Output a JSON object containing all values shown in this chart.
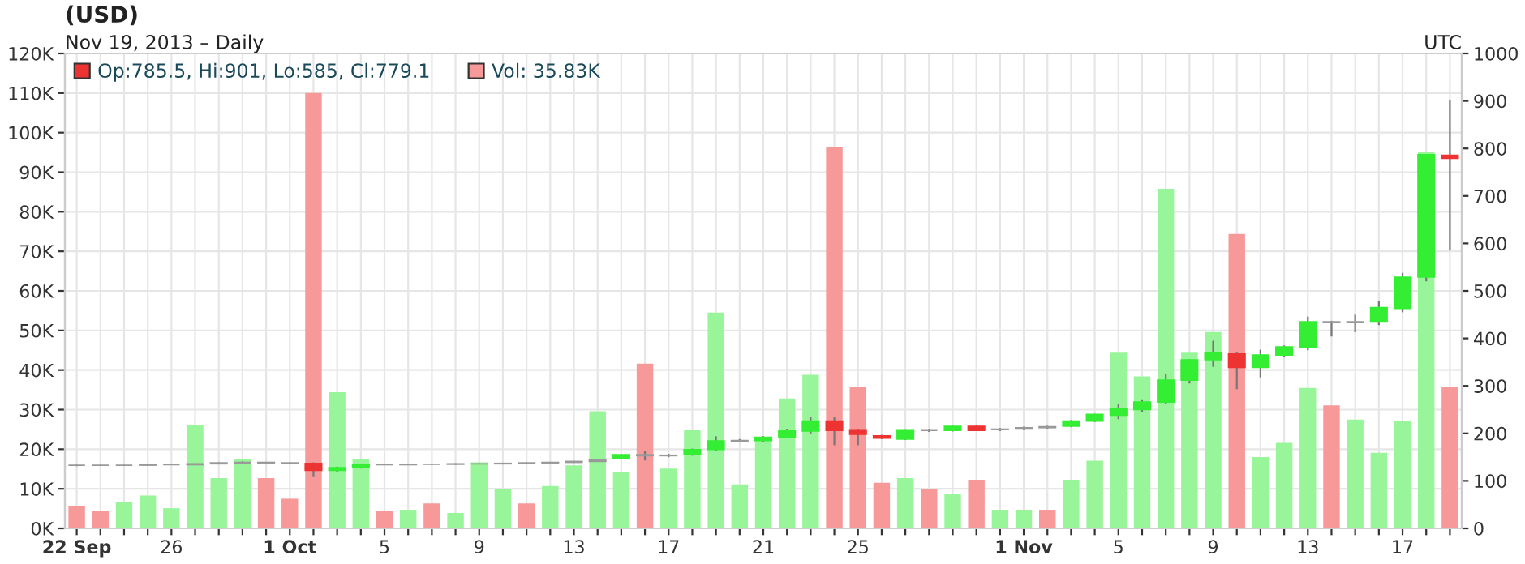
{
  "chart_data": {
    "type": "candlestick",
    "title": "(USD)",
    "subtitle": "Nov 19, 2013 – Daily",
    "annotations": [
      "UTC"
    ],
    "x": [
      "2013-09-22",
      "2013-09-23",
      "2013-09-24",
      "2013-09-25",
      "2013-09-26",
      "2013-09-27",
      "2013-09-28",
      "2013-09-29",
      "2013-09-30",
      "2013-10-01",
      "2013-10-02",
      "2013-10-03",
      "2013-10-04",
      "2013-10-05",
      "2013-10-06",
      "2013-10-07",
      "2013-10-08",
      "2013-10-09",
      "2013-10-10",
      "2013-10-11",
      "2013-10-12",
      "2013-10-13",
      "2013-10-14",
      "2013-10-15",
      "2013-10-16",
      "2013-10-17",
      "2013-10-18",
      "2013-10-19",
      "2013-10-20",
      "2013-10-21",
      "2013-10-22",
      "2013-10-23",
      "2013-10-24",
      "2013-10-25",
      "2013-10-26",
      "2013-10-27",
      "2013-10-28",
      "2013-10-29",
      "2013-10-30",
      "2013-10-31",
      "2013-11-01",
      "2013-11-02",
      "2013-11-03",
      "2013-11-04",
      "2013-11-05",
      "2013-11-06",
      "2013-11-07",
      "2013-11-08",
      "2013-11-09",
      "2013-11-10",
      "2013-11-11",
      "2013-11-12",
      "2013-11-13",
      "2013-11-14",
      "2013-11-15",
      "2013-11-16",
      "2013-11-17",
      "2013-11-18",
      "2013-11-19"
    ],
    "series": [
      {
        "type": "bar",
        "name": "Vol: 35.83K",
        "color": "#f79999",
        "values": [
          5.6,
          4.3,
          6.7,
          8.3,
          5.1,
          26.1,
          12.7,
          17.4,
          12.7,
          7.5,
          110,
          34.4,
          17.4,
          4.3,
          4.7,
          6.3,
          3.9,
          16.7,
          10.0,
          6.3,
          10.7,
          15.9,
          29.6,
          14.3,
          41.6,
          15.1,
          24.8,
          54.5,
          11.1,
          22.8,
          32.8,
          38.8,
          96.3,
          35.7,
          11.5,
          12.7,
          10.0,
          8.7,
          12.3,
          4.7,
          4.7,
          4.7,
          12.3,
          17.1,
          44.4,
          38.4,
          85.8,
          44.4,
          49.6,
          74.4,
          18.0,
          21.6,
          35.5,
          31.1,
          27.5,
          19.1,
          27.1,
          95,
          35.8
        ],
        "colors": [
          "#f79999",
          "#f79999",
          "#99f599",
          "#99f599",
          "#99f599",
          "#99f599",
          "#99f599",
          "#99f599",
          "#f79999",
          "#f79999",
          "#f79999",
          "#99f599",
          "#99f599",
          "#f79999",
          "#99f599",
          "#f79999",
          "#99f599",
          "#99f599",
          "#99f599",
          "#f79999",
          "#99f599",
          "#99f599",
          "#99f599",
          "#99f599",
          "#f79999",
          "#99f599",
          "#99f599",
          "#99f599",
          "#99f599",
          "#99f599",
          "#99f599",
          "#99f599",
          "#f79999",
          "#f79999",
          "#f79999",
          "#99f599",
          "#f79999",
          "#99f599",
          "#f79999",
          "#99f599",
          "#99f599",
          "#f79999",
          "#99f599",
          "#99f599",
          "#99f599",
          "#99f599",
          "#99f599",
          "#99f599",
          "#99f599",
          "#f79999",
          "#99f599",
          "#99f599",
          "#99f599",
          "#f79999",
          "#99f599",
          "#99f599",
          "#99f599",
          "#99f599",
          "#f79999"
        ]
      },
      {
        "axis": "y2",
        "name": "Op:785.5, Hi:901, Lo:585, Cl:779.1",
        "color": "#ee3333",
        "ohlc": [
          [
            133,
            134,
            131,
            133
          ],
          [
            133,
            134,
            132,
            133
          ],
          [
            133,
            134,
            132,
            133
          ],
          [
            133,
            134,
            132,
            134
          ],
          [
            134,
            135,
            133,
            134
          ],
          [
            134,
            137,
            133,
            136
          ],
          [
            136,
            139,
            135,
            138
          ],
          [
            138,
            141,
            137,
            139
          ],
          [
            139,
            140,
            137,
            138
          ],
          [
            138,
            139,
            136,
            137
          ],
          [
            137,
            139,
            108,
            122
          ],
          [
            122,
            130,
            118,
            128
          ],
          [
            128,
            136,
            126,
            135
          ],
          [
            135,
            136,
            133,
            134
          ],
          [
            134,
            135,
            133,
            135
          ],
          [
            135,
            136,
            134,
            135
          ],
          [
            135,
            137,
            134,
            136
          ],
          [
            136,
            137,
            135,
            136
          ],
          [
            136,
            138,
            135,
            137
          ],
          [
            137,
            139,
            136,
            138
          ],
          [
            138,
            140,
            137,
            139
          ],
          [
            139,
            142,
            138,
            141
          ],
          [
            141,
            146,
            140,
            145
          ],
          [
            147,
            156,
            146,
            155
          ],
          [
            155,
            163,
            143,
            153
          ],
          [
            153,
            157,
            150,
            154
          ],
          [
            155,
            168,
            153,
            166
          ],
          [
            166,
            194,
            163,
            184
          ],
          [
            184,
            188,
            181,
            185
          ],
          [
            185,
            194,
            182,
            192
          ],
          [
            192,
            208,
            190,
            205
          ],
          [
            205,
            234,
            200,
            226
          ],
          [
            226,
            234,
            175,
            206
          ],
          [
            206,
            208,
            175,
            198
          ],
          [
            195,
            197,
            188,
            190
          ],
          [
            188,
            207,
            186,
            206
          ],
          [
            206,
            208,
            203,
            206
          ],
          [
            206,
            216,
            204,
            215
          ],
          [
            215,
            217,
            205,
            206
          ],
          [
            208,
            211,
            205,
            209
          ],
          [
            209,
            214,
            207,
            212
          ],
          [
            212,
            216,
            210,
            214
          ],
          [
            215,
            228,
            213,
            226
          ],
          [
            226,
            241,
            224,
            240
          ],
          [
            238,
            262,
            230,
            252
          ],
          [
            250,
            270,
            245,
            266
          ],
          [
            266,
            326,
            262,
            312
          ],
          [
            312,
            356,
            305,
            355
          ],
          [
            355,
            395,
            340,
            370
          ],
          [
            367,
            372,
            293,
            339
          ],
          [
            339,
            376,
            318,
            365
          ],
          [
            365,
            385,
            360,
            382
          ],
          [
            382,
            446,
            375,
            435
          ],
          [
            435,
            437,
            404,
            434
          ],
          [
            434,
            450,
            413,
            435
          ],
          [
            436,
            478,
            428,
            465
          ],
          [
            463,
            538,
            455,
            529
          ],
          [
            529,
            788,
            520,
            787
          ],
          [
            785.5,
            901,
            585,
            779.1
          ]
        ],
        "colors": [
          "#999999",
          "#999999",
          "#999999",
          "#999999",
          "#999999",
          "#999999",
          "#999999",
          "#999999",
          "#999999",
          "#999999",
          "#ee3333",
          "#33ee33",
          "#33ee33",
          "#999999",
          "#999999",
          "#999999",
          "#999999",
          "#999999",
          "#999999",
          "#999999",
          "#999999",
          "#999999",
          "#999999",
          "#33ee33",
          "#999999",
          "#999999",
          "#33ee33",
          "#33ee33",
          "#999999",
          "#33ee33",
          "#33ee33",
          "#33ee33",
          "#ee3333",
          "#ee3333",
          "#ee3333",
          "#33ee33",
          "#999999",
          "#33ee33",
          "#ee3333",
          "#999999",
          "#999999",
          "#999999",
          "#33ee33",
          "#33ee33",
          "#33ee33",
          "#33ee33",
          "#33ee33",
          "#33ee33",
          "#33ee33",
          "#ee3333",
          "#33ee33",
          "#33ee33",
          "#33ee33",
          "#999999",
          "#999999",
          "#33ee33",
          "#33ee33",
          "#33ee33",
          "#ee3333"
        ]
      }
    ],
    "xlim": [
      "2013-09-21T12:00",
      "2013-11-19T12:00"
    ],
    "xticks": [
      {
        "value": "2013-09-22",
        "label": "22 Sep"
      },
      {
        "value": "2013-09-23",
        "label": null
      },
      {
        "value": "2013-09-24",
        "label": null
      },
      {
        "value": "2013-09-25",
        "label": null
      },
      {
        "value": "2013-09-26",
        "label": "26"
      },
      {
        "value": "2013-09-27",
        "label": null
      },
      {
        "value": "2013-09-28",
        "label": null
      },
      {
        "value": "2013-09-29",
        "label": null
      },
      {
        "value": "2013-09-30",
        "label": null
      },
      {
        "value": "2013-10-01",
        "label": "1 Oct"
      },
      {
        "value": "2013-10-02",
        "label": null
      },
      {
        "value": "2013-10-03",
        "label": null
      },
      {
        "value": "2013-10-04",
        "label": null
      },
      {
        "value": "2013-10-05",
        "label": "5"
      },
      {
        "value": "2013-10-06",
        "label": null
      },
      {
        "value": "2013-10-07",
        "label": null
      },
      {
        "value": "2013-10-08",
        "label": null
      },
      {
        "value": "2013-10-09",
        "label": "9"
      },
      {
        "value": "2013-10-10",
        "label": null
      },
      {
        "value": "2013-10-11",
        "label": null
      },
      {
        "value": "2013-10-12",
        "label": null
      },
      {
        "value": "2013-10-13",
        "label": "13"
      },
      {
        "value": "2013-10-14",
        "label": null
      },
      {
        "value": "2013-10-15",
        "label": null
      },
      {
        "value": "2013-10-16",
        "label": null
      },
      {
        "value": "2013-10-17",
        "label": "17"
      },
      {
        "value": "2013-10-18",
        "label": null
      },
      {
        "value": "2013-10-19",
        "label": null
      },
      {
        "value": "2013-10-20",
        "label": null
      },
      {
        "value": "2013-10-21",
        "label": "21"
      },
      {
        "value": "2013-10-22",
        "label": null
      },
      {
        "value": "2013-10-23",
        "label": null
      },
      {
        "value": "2013-10-24",
        "label": null
      },
      {
        "value": "2013-10-25",
        "label": "25"
      },
      {
        "value": "2013-10-26",
        "label": null
      },
      {
        "value": "2013-10-27",
        "label": null
      },
      {
        "value": "2013-10-28",
        "label": null
      },
      {
        "value": "2013-10-29",
        "label": null
      },
      {
        "value": "2013-10-30",
        "label": null
      },
      {
        "value": "2013-10-31",
        "label": null
      },
      {
        "value": "2013-11-01",
        "label": "1 Nov"
      },
      {
        "value": "2013-11-02",
        "label": null
      },
      {
        "value": "2013-11-03",
        "label": null
      },
      {
        "value": "2013-11-04",
        "label": null
      },
      {
        "value": "2013-11-05",
        "label": "5"
      },
      {
        "value": "2013-11-06",
        "label": null
      },
      {
        "value": "2013-11-07",
        "label": null
      },
      {
        "value": "2013-11-08",
        "label": null
      },
      {
        "value": "2013-11-09",
        "label": "9"
      },
      {
        "value": "2013-11-10",
        "label": null
      },
      {
        "value": "2013-11-11",
        "label": null
      },
      {
        "value": "2013-11-12",
        "label": null
      },
      {
        "value": "2013-11-13",
        "label": "13"
      },
      {
        "value": "2013-11-14",
        "label": null
      },
      {
        "value": "2013-11-15",
        "label": null
      },
      {
        "value": "2013-11-16",
        "label": null
      },
      {
        "value": "2013-11-17",
        "label": "17"
      },
      {
        "value": "2013-11-18",
        "label": null
      },
      {
        "value": "2013-11-19",
        "label": null
      }
    ],
    "ylim": [
      0,
      120
    ],
    "yticks": [
      {
        "value": 0,
        "label": "0K"
      },
      {
        "value": 10,
        "label": "10K"
      },
      {
        "value": 20,
        "label": "20K"
      },
      {
        "value": 30,
        "label": "30K"
      },
      {
        "value": 40,
        "label": "40K"
      },
      {
        "value": 50,
        "label": "50K"
      },
      {
        "value": 60,
        "label": "60K"
      },
      {
        "value": 70,
        "label": "70K"
      },
      {
        "value": 80,
        "label": "80K"
      },
      {
        "value": 90,
        "label": "90K"
      },
      {
        "value": 100,
        "label": "100K"
      },
      {
        "value": 110,
        "label": "110K"
      },
      {
        "value": 120,
        "label": "120K"
      }
    ],
    "y2lim": [
      0,
      1000
    ],
    "y2ticks": [
      0,
      100,
      200,
      300,
      400,
      500,
      600,
      700,
      800,
      900,
      1000
    ],
    "grid": true,
    "legend": "top left"
  }
}
